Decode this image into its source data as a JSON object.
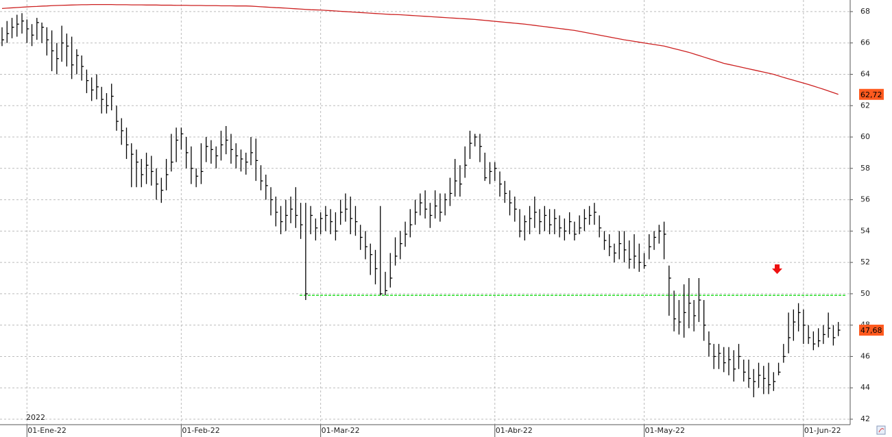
{
  "chart_data": {
    "type": "ohlc",
    "year_label": "2022",
    "categories": [
      null,
      null,
      null,
      null,
      null,
      "01-Ene-22",
      null,
      null,
      null,
      null,
      null,
      null,
      null,
      null,
      null,
      null,
      null,
      null,
      null,
      null,
      null,
      null,
      null,
      null,
      null,
      null,
      null,
      null,
      null,
      null,
      null,
      null,
      null,
      null,
      null,
      null,
      "01-Feb-22",
      null,
      null,
      null,
      null,
      null,
      null,
      null,
      null,
      null,
      null,
      null,
      null,
      null,
      null,
      null,
      null,
      null,
      null,
      null,
      null,
      null,
      null,
      null,
      null,
      null,
      null,
      null,
      "01-Mar-22",
      null,
      null,
      null,
      null,
      null,
      null,
      null,
      null,
      null,
      null,
      null,
      null,
      null,
      null,
      null,
      null,
      null,
      null,
      null,
      null,
      null,
      null,
      null,
      null,
      null,
      null,
      null,
      null,
      null,
      null,
      null,
      null,
      null,
      null,
      "01-Abr-22",
      null,
      null,
      null,
      null,
      null,
      null,
      null,
      null,
      null,
      null,
      null,
      null,
      null,
      null,
      null,
      null,
      null,
      null,
      null,
      null,
      null,
      null,
      null,
      null,
      null,
      null,
      null,
      null,
      null,
      "01-May-22",
      null,
      null,
      null,
      null,
      null,
      null,
      null,
      null,
      null,
      null,
      null,
      null,
      null,
      null,
      null,
      null,
      null,
      null,
      null,
      null,
      null,
      null,
      null,
      null,
      null,
      null,
      null,
      null,
      null,
      null,
      null,
      "01-Jun-22",
      null,
      null,
      null,
      null,
      null,
      null,
      null
    ],
    "bars": {
      "color": "#000000",
      "high": [
        67.0,
        67.4,
        67.6,
        67.8,
        67.9,
        67.5,
        67.2,
        67.6,
        67.3,
        67.0,
        66.8,
        66.0,
        67.1,
        66.6,
        66.4,
        65.6,
        65.2,
        64.3,
        63.8,
        64.0,
        63.2,
        62.8,
        63.4,
        62.0,
        61.2,
        60.6,
        59.6,
        59.2,
        58.6,
        59.0,
        58.8,
        58.0,
        57.4,
        58.6,
        60.2,
        60.6,
        60.6,
        60.0,
        59.4,
        58.0,
        59.6,
        60.0,
        59.8,
        59.4,
        60.4,
        60.7,
        60.2,
        59.6,
        59.2,
        59.0,
        60.0,
        59.9,
        58.2,
        57.6,
        56.8,
        56.2,
        55.6,
        56.0,
        56.2,
        56.8,
        55.8,
        55.8,
        55.6,
        54.8,
        55.2,
        55.6,
        55.4,
        55.2,
        56.0,
        56.4,
        56.2,
        55.6,
        54.4,
        54.0,
        53.2,
        52.8,
        55.6,
        51.4,
        52.6,
        53.6,
        54.0,
        54.6,
        55.4,
        56.0,
        56.4,
        56.6,
        55.8,
        56.6,
        56.4,
        56.4,
        57.4,
        58.6,
        58.2,
        59.4,
        60.4,
        60.2,
        60.2,
        59.0,
        58.4,
        58.4,
        57.8,
        57.2,
        56.6,
        56.2,
        55.4,
        55.0,
        55.6,
        56.2,
        55.4,
        55.6,
        55.4,
        55.4,
        55.0,
        54.8,
        55.2,
        54.6,
        55.0,
        55.4,
        55.6,
        55.8,
        55.0,
        54.0,
        53.8,
        53.2,
        54.0,
        54.0,
        53.4,
        53.8,
        53.2,
        52.6,
        53.8,
        54.0,
        54.4,
        54.6,
        51.8,
        50.2,
        49.6,
        50.6,
        51.0,
        49.6,
        51.0,
        49.6,
        47.6,
        46.8,
        46.8,
        46.6,
        46.6,
        46.4,
        46.8,
        45.8,
        45.8,
        45.2,
        45.6,
        45.4,
        45.6,
        45.0,
        45.6,
        46.8,
        48.8,
        49.0,
        49.4,
        49.0,
        48.0,
        47.6,
        47.8,
        48.0,
        48.8,
        48.0,
        48.2
      ],
      "low": [
        65.8,
        66.0,
        66.3,
        66.4,
        66.6,
        66.0,
        65.8,
        66.2,
        66.0,
        65.2,
        64.2,
        64.0,
        64.8,
        64.5,
        63.7,
        64.0,
        63.6,
        62.8,
        62.3,
        62.4,
        61.5,
        61.5,
        61.7,
        60.4,
        59.5,
        58.6,
        56.8,
        56.8,
        56.8,
        57.0,
        56.9,
        56.0,
        55.8,
        56.6,
        57.8,
        58.4,
        59.2,
        58.0,
        57.0,
        56.8,
        57.0,
        58.4,
        58.3,
        58.0,
        58.5,
        58.9,
        58.3,
        58.0,
        57.8,
        57.6,
        58.2,
        57.2,
        56.6,
        56.0,
        55.0,
        54.3,
        53.8,
        54.0,
        54.5,
        54.2,
        53.5,
        49.6,
        53.8,
        53.4,
        53.8,
        54.0,
        53.8,
        53.4,
        54.4,
        54.6,
        53.8,
        53.7,
        52.8,
        52.2,
        51.2,
        50.6,
        49.9,
        49.9,
        50.4,
        51.8,
        52.2,
        53.0,
        53.6,
        54.4,
        55.0,
        54.8,
        54.2,
        54.8,
        54.6,
        55.0,
        55.6,
        56.2,
        56.2,
        57.4,
        58.6,
        59.4,
        58.4,
        57.2,
        57.0,
        57.2,
        56.2,
        55.8,
        55.0,
        54.6,
        53.6,
        53.4,
        53.8,
        54.2,
        53.8,
        54.0,
        53.8,
        53.8,
        53.6,
        53.4,
        53.8,
        53.4,
        53.8,
        54.0,
        54.4,
        54.4,
        53.6,
        52.8,
        52.4,
        52.0,
        52.2,
        52.0,
        51.6,
        51.6,
        51.4,
        51.6,
        52.2,
        52.8,
        53.2,
        52.2,
        48.6,
        47.6,
        47.4,
        47.2,
        47.8,
        47.6,
        48.2,
        47.0,
        46.0,
        45.2,
        45.2,
        45.0,
        44.8,
        44.4,
        45.2,
        44.4,
        44.0,
        43.4,
        44.0,
        43.6,
        43.6,
        43.8,
        44.8,
        45.6,
        46.2,
        47.0,
        47.6,
        46.8,
        46.8,
        46.4,
        46.6,
        46.8,
        47.2,
        46.7,
        47.3
      ],
      "close": [
        66.2,
        66.6,
        67.0,
        67.2,
        67.4,
        66.9,
        66.5,
        67.3,
        67.0,
        66.2,
        65.5,
        65.0,
        66.0,
        65.8,
        64.6,
        65.2,
        64.5,
        63.6,
        63.0,
        63.2,
        62.4,
        62.0,
        62.6,
        61.0,
        60.4,
        59.5,
        58.9,
        58.4,
        57.6,
        58.2,
        57.8,
        57.0,
        56.6,
        57.6,
        58.4,
        59.8,
        60.2,
        59.0,
        58.0,
        57.5,
        57.8,
        59.4,
        59.2,
        58.8,
        59.5,
        59.8,
        59.2,
        58.8,
        58.6,
        58.4,
        59.0,
        58.5,
        57.2,
        56.9,
        56.0,
        55.2,
        54.6,
        55.0,
        55.4,
        55.0,
        54.4,
        50.0,
        55.0,
        54.2,
        54.8,
        55.0,
        54.6,
        54.0,
        55.2,
        55.4,
        54.8,
        54.6,
        53.6,
        53.0,
        52.5,
        51.6,
        50.0,
        50.2,
        51.0,
        52.4,
        53.2,
        53.8,
        54.4,
        55.2,
        55.8,
        55.4,
        55.0,
        55.6,
        55.2,
        56.0,
        56.4,
        57.2,
        57.0,
        58.2,
        59.6,
        60.0,
        59.4,
        57.4,
        57.8,
        58.0,
        57.0,
        56.4,
        55.8,
        55.4,
        54.0,
        54.6,
        54.8,
        55.2,
        54.6,
        55.0,
        54.4,
        54.8,
        54.2,
        54.0,
        54.6,
        53.8,
        54.2,
        54.8,
        55.0,
        55.2,
        54.2,
        53.4,
        53.0,
        52.6,
        53.2,
        52.8,
        52.2,
        52.4,
        52.0,
        51.8,
        53.0,
        53.6,
        54.0,
        53.8,
        51.0,
        48.4,
        48.2,
        48.8,
        49.4,
        48.6,
        49.6,
        48.0,
        46.8,
        46.0,
        46.2,
        45.6,
        45.8,
        45.2,
        46.0,
        45.0,
        44.6,
        44.4,
        44.8,
        44.6,
        44.2,
        44.4,
        45.0,
        46.0,
        47.2,
        48.2,
        48.8,
        48.0,
        47.2,
        46.8,
        47.0,
        47.4,
        47.8,
        47.2,
        47.68
      ],
      "last_label": "47,68",
      "label_color": "#ff5a1f"
    },
    "average": {
      "color": "#cc1f1f",
      "last_label": "62,72",
      "label_color": "#ff5a1f",
      "values": [
        68.2,
        68.22,
        68.24,
        68.26,
        68.28,
        68.3,
        68.32,
        68.33,
        68.35,
        68.36,
        68.38,
        68.39,
        68.4,
        68.41,
        68.42,
        68.43,
        68.44,
        68.44,
        68.45,
        68.45,
        68.45,
        68.45,
        68.45,
        68.44,
        68.44,
        68.44,
        68.43,
        68.43,
        68.43,
        68.42,
        68.42,
        68.42,
        68.41,
        68.41,
        68.41,
        68.4,
        68.4,
        68.4,
        68.39,
        68.39,
        68.39,
        68.38,
        68.38,
        68.38,
        68.37,
        68.37,
        68.37,
        68.36,
        68.36,
        68.36,
        68.35,
        68.33,
        68.31,
        68.29,
        68.27,
        68.25,
        68.24,
        68.22,
        68.2,
        68.18,
        68.16,
        68.14,
        68.12,
        68.11,
        68.1,
        68.08,
        68.06,
        68.04,
        68.02,
        68.0,
        67.98,
        67.96,
        67.94,
        67.92,
        67.9,
        67.88,
        67.86,
        67.84,
        67.82,
        67.81,
        67.8,
        67.78,
        67.76,
        67.74,
        67.72,
        67.7,
        67.68,
        67.66,
        67.64,
        67.62,
        67.6,
        67.58,
        67.56,
        67.54,
        67.52,
        67.5,
        67.47,
        67.44,
        67.41,
        67.38,
        67.35,
        67.32,
        67.29,
        67.26,
        67.23,
        67.2,
        67.16,
        67.12,
        67.08,
        67.04,
        67.0,
        66.96,
        66.92,
        66.88,
        66.84,
        66.8,
        66.74,
        66.68,
        66.62,
        66.56,
        66.5,
        66.44,
        66.38,
        66.32,
        66.26,
        66.2,
        66.15,
        66.1,
        66.05,
        66.0,
        65.95,
        65.9,
        65.85,
        65.8,
        65.72,
        65.64,
        65.56,
        65.48,
        65.4,
        65.3,
        65.2,
        65.1,
        65.0,
        64.9,
        64.8,
        64.7,
        64.63,
        64.56,
        64.49,
        64.42,
        64.35,
        64.28,
        64.21,
        64.14,
        64.07,
        64.0,
        63.9,
        63.8,
        63.71,
        63.62,
        63.53,
        63.44,
        63.35,
        63.25,
        63.15,
        63.05,
        62.94,
        62.83,
        62.72
      ]
    },
    "level": {
      "value": 49.9,
      "color": "#22dd22"
    },
    "ylim": [
      41.65,
      68.74
    ],
    "yticks": [
      42,
      44,
      46,
      48,
      50,
      52,
      54,
      56,
      58,
      60,
      62,
      64,
      66,
      68
    ],
    "grid": true
  }
}
